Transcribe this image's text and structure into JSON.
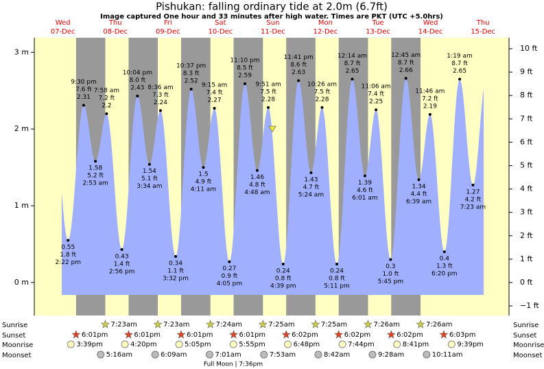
{
  "chart_data": {
    "type": "area",
    "title": "Pishukan: falling  ordinary tide at 2.0m (6.7ft)",
    "subtitle": "Image captured One hour and 33 minutes after high water. Times are PKT (UTC +5.0hrs)",
    "days": [
      "Wed",
      "Thu",
      "Fri",
      "Sat",
      "Sun",
      "Mon",
      "Tue",
      "Wed",
      "Thu"
    ],
    "dates": [
      "07-Dec",
      "08-Dec",
      "09-Dec",
      "10-Dec",
      "11-Dec",
      "12-Dec",
      "13-Dec",
      "14-Dec",
      "15-Dec"
    ],
    "ylim": [
      -0.43,
      3.19
    ],
    "yticks": [
      {
        "value": 0,
        "label": "0 m"
      },
      {
        "value": 1,
        "label": "1 m"
      },
      {
        "value": 2,
        "label": "2 m"
      },
      {
        "value": 3,
        "label": "3 m"
      }
    ],
    "y2lim": [
      -1.41,
      10.47
    ],
    "y2ticks": [
      {
        "value": -1,
        "label": "−1 ft"
      },
      {
        "value": 0,
        "label": "0 ft"
      },
      {
        "value": 1,
        "label": "1 ft"
      },
      {
        "value": 2,
        "label": "2 ft"
      },
      {
        "value": 3,
        "label": "3 ft"
      },
      {
        "value": 4,
        "label": "4 ft"
      },
      {
        "value": 5,
        "label": "5 ft"
      },
      {
        "value": 6,
        "label": "6 ft"
      },
      {
        "value": 7,
        "label": "7 ft"
      },
      {
        "value": 8,
        "label": "8 ft"
      },
      {
        "value": 9,
        "label": "9 ft"
      },
      {
        "value": 10,
        "label": "10 ft"
      }
    ],
    "color": "#a0b0ff",
    "extremes": {
      "times": [
        "2:22 pm",
        "9:30 pm",
        "2:53 am",
        "7:58 am",
        "2:56 pm",
        "10:04 pm",
        "3:34 am",
        "8:36 am",
        "3:32 pm",
        "10:37 pm",
        "4:11 am",
        "9:15 am",
        "4:05 pm",
        "11:10 pm",
        "4:48 am",
        "9:51 am",
        "4:39 pm",
        "11:41 pm",
        "5:24 am",
        "10:26 am",
        "5:11 pm",
        "12:14 am",
        "6:01 am",
        "11:06 am",
        "5:45 pm",
        "12:45 am",
        "6:39 am",
        "11:46 am",
        "6:20 pm",
        "1:19 am",
        "7:23 am"
      ],
      "values": [
        0.55,
        2.31,
        1.58,
        2.2,
        0.43,
        2.43,
        1.54,
        2.24,
        0.34,
        2.52,
        1.5,
        2.27,
        0.27,
        2.59,
        1.46,
        2.28,
        0.24,
        2.63,
        1.43,
        2.28,
        0.24,
        2.65,
        1.39,
        2.25,
        0.3,
        2.66,
        1.34,
        2.19,
        0.4,
        2.65,
        1.27
      ],
      "feet_labels": [
        "1.8 ft",
        "7.6 ft",
        "5.2 ft",
        "7.2 ft",
        "1.4 ft",
        "8.0 ft",
        "5.1 ft",
        "7.3 ft",
        "1.1 ft",
        "8.3 ft",
        "4.9 ft",
        "7.4 ft",
        "0.9 ft",
        "8.5 ft",
        "4.8 ft",
        "7.5 ft",
        "0.8 ft",
        "8.6 ft",
        "4.7 ft",
        "7.5 ft",
        "0.8 ft",
        "8.7 ft",
        "4.6 ft",
        "7.4 ft",
        "1.0 ft",
        "8.7 ft",
        "4.4 ft",
        "7.2 ft",
        "1.3 ft",
        "8.7 ft",
        "4.2 ft"
      ]
    },
    "current_value": 2.0,
    "sunrise_label": "Sunrise",
    "sunrise": [
      "7:23am",
      "7:23am",
      "7:24am",
      "7:25am",
      "7:25am",
      "7:26am",
      "7:26am"
    ],
    "sunset_label": "Sunset",
    "sunset": [
      "6:01pm",
      "6:01pm",
      "6:01pm",
      "6:01pm",
      "6:02pm",
      "6:02pm",
      "6:02pm",
      "6:03pm"
    ],
    "moonrise_label": "Moonrise",
    "moonrise": [
      "3:39pm",
      "4:20pm",
      "5:05pm",
      "5:55pm",
      "6:48pm",
      "7:44pm",
      "8:41pm",
      "9:39pm"
    ],
    "moonset_label": "Moonset",
    "moonset": [
      "5:16am",
      "6:09am",
      "7:01am",
      "7:53am",
      "8:42am",
      "9:28am",
      "10:11am"
    ],
    "full_moon": "Full Moon | 7:36pm"
  }
}
